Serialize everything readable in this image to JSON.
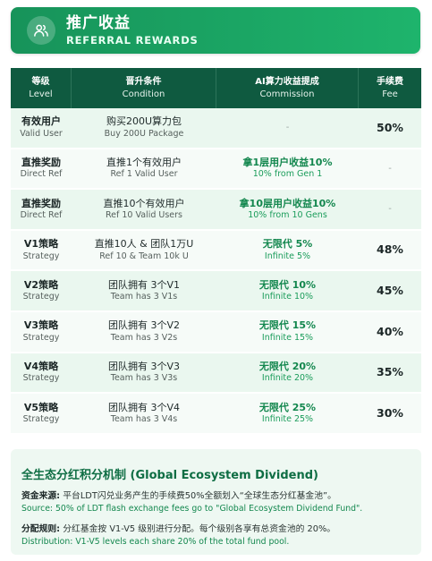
{
  "header": {
    "title": "推广收益",
    "subtitle": "REFERRAL REWARDS",
    "icon": "users-icon"
  },
  "table": {
    "columns": [
      {
        "cn": "等级",
        "en": "Level"
      },
      {
        "cn": "晋升条件",
        "en": "Condition"
      },
      {
        "cn": "AI算力收益提成",
        "en": "Commission"
      },
      {
        "cn": "手续费",
        "en": "Fee"
      }
    ],
    "rows": [
      {
        "level_cn": "有效用户",
        "level_en": "Valid User",
        "cond_cn": "购买200U算力包",
        "cond_en": "Buy 200U Package",
        "comm_cn": "-",
        "comm_en": "",
        "fee": "50%"
      },
      {
        "level_cn": "直推奖励",
        "level_en": "Direct Ref",
        "cond_cn": "直推1个有效用户",
        "cond_en": "Ref 1 Valid User",
        "comm_cn": "拿1层用户收益10%",
        "comm_en": "10% from Gen 1",
        "fee": "-"
      },
      {
        "level_cn": "直推奖励",
        "level_en": "Direct Ref",
        "cond_cn": "直推10个有效用户",
        "cond_en": "Ref 10 Valid Users",
        "comm_cn": "拿10层用户收益10%",
        "comm_en": "10% from 10 Gens",
        "fee": "-"
      },
      {
        "level_cn": "V1策略",
        "level_en": "Strategy",
        "cond_cn": "直推10人 & 团队1万U",
        "cond_en": "Ref 10 & Team 10k U",
        "comm_cn": "无限代 5%",
        "comm_en": "Infinite 5%",
        "fee": "48%"
      },
      {
        "level_cn": "V2策略",
        "level_en": "Strategy",
        "cond_cn": "团队拥有 3个V1",
        "cond_en": "Team has 3 V1s",
        "comm_cn": "无限代 10%",
        "comm_en": "Infinite 10%",
        "fee": "45%"
      },
      {
        "level_cn": "V3策略",
        "level_en": "Strategy",
        "cond_cn": "团队拥有 3个V2",
        "cond_en": "Team has 3 V2s",
        "comm_cn": "无限代 15%",
        "comm_en": "Infinite 15%",
        "fee": "40%"
      },
      {
        "level_cn": "V4策略",
        "level_en": "Strategy",
        "cond_cn": "团队拥有 3个V3",
        "cond_en": "Team has 3 V3s",
        "comm_cn": "无限代 20%",
        "comm_en": "Infinite 20%",
        "fee": "35%"
      },
      {
        "level_cn": "V5策略",
        "level_en": "Strategy",
        "cond_cn": "团队拥有 3个V4",
        "cond_en": "Team has 3 V4s",
        "comm_cn": "无限代 25%",
        "comm_en": "Infinite 25%",
        "fee": "30%"
      }
    ]
  },
  "dividend": {
    "title": "全生态分红积分机制 (Global Ecosystem Dividend)",
    "source_label": "资金来源:",
    "source_cn": "平台LDT闪兑业务产生的手续费50%全额划入“全球生态分红基金池”。",
    "source_en": "Source: 50% of LDT flash exchange fees go to \"Global Ecosystem Dividend Fund\".",
    "rule_label": "分配规则:",
    "rule_cn": "分红基金按 V1-V5 级别进行分配。每个级别各享有总资金池的 20%。",
    "rule_en": "Distribution: V1-V5 levels each share 20% of the total fund pool."
  },
  "colors": {
    "header_green": "#1eb46c",
    "table_header": "#0f5a40",
    "commission_green": "#13874e",
    "row_alt": "#eaf7ef"
  }
}
